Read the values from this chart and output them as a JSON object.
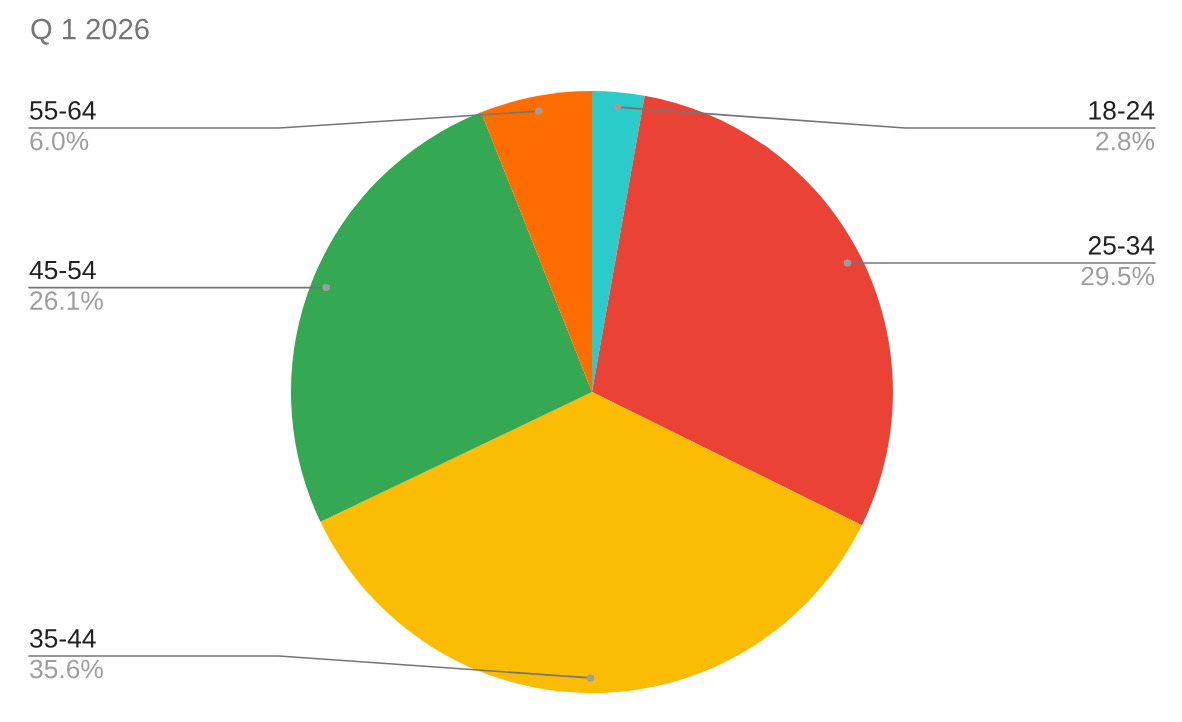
{
  "chart_data": {
    "type": "pie",
    "title": "Q 1 2026",
    "categories": [
      "18-24",
      "25-34",
      "35-44",
      "45-54",
      "55-64"
    ],
    "values": [
      2.8,
      29.5,
      35.6,
      26.1,
      6.0
    ],
    "value_labels": [
      "2.8%",
      "29.5%",
      "35.6%",
      "26.1%",
      "6.0%"
    ],
    "colors": [
      "#2bcbca",
      "#ea4335",
      "#fbbc04",
      "#34a853",
      "#ff6d01"
    ],
    "legend": false
  }
}
